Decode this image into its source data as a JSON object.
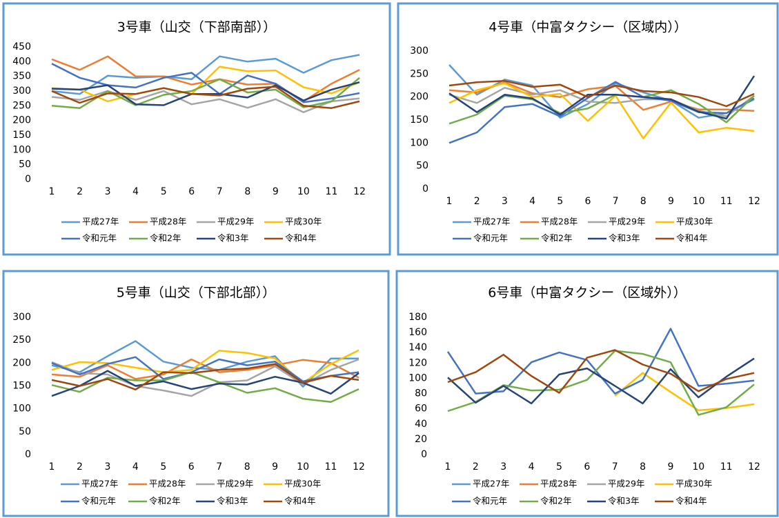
{
  "chart_data": [
    {
      "type": "line",
      "title": "3号車（山交（下部南部））",
      "categories": [
        "1",
        "2",
        "3",
        "4",
        "5",
        "6",
        "7",
        "8",
        "9",
        "10",
        "11",
        "12"
      ],
      "ylim": [
        0,
        450
      ],
      "yticks": [
        0,
        50,
        100,
        150,
        200,
        250,
        300,
        350,
        400,
        450
      ],
      "grid": false,
      "series": [
        {
          "name": "平成27年",
          "color": "#5b9bd5",
          "values": [
            300,
            290,
            352,
            345,
            350,
            340,
            418,
            400,
            410,
            362,
            405,
            423
          ]
        },
        {
          "name": "平成28年",
          "color": "#ed7d31",
          "values": [
            408,
            372,
            418,
            350,
            350,
            322,
            340,
            322,
            325,
            265,
            325,
            372
          ]
        },
        {
          "name": "平成29年",
          "color": "#a5a5a5",
          "values": [
            280,
            270,
            300,
            270,
            300,
            255,
            272,
            243,
            272,
            228,
            265,
            275
          ]
        },
        {
          "name": "平成30年",
          "color": "#ffc000",
          "values": [
            310,
            305,
            265,
            290,
            310,
            290,
            383,
            367,
            370,
            313,
            292,
            330
          ]
        },
        {
          "name": "令和元年",
          "color": "#4472c4",
          "values": [
            393,
            345,
            320,
            312,
            345,
            362,
            290,
            353,
            325,
            262,
            275,
            293
          ]
        },
        {
          "name": "令和2年",
          "color": "#70ad47",
          "values": [
            250,
            242,
            300,
            252,
            287,
            300,
            340,
            295,
            305,
            245,
            265,
            345
          ]
        },
        {
          "name": "令和3年",
          "color": "#264478",
          "values": [
            308,
            305,
            320,
            255,
            252,
            290,
            290,
            278,
            320,
            268,
            305,
            330
          ]
        },
        {
          "name": "令和4年",
          "color": "#9e480e",
          "values": [
            300,
            260,
            292,
            290,
            310,
            290,
            285,
            308,
            315,
            250,
            242,
            265
          ]
        }
      ]
    },
    {
      "type": "line",
      "title": "4号車（中富タクシー（区域内））",
      "categories": [
        "1",
        "2",
        "3",
        "4",
        "5",
        "6",
        "7",
        "8",
        "9",
        "10",
        "11",
        "12"
      ],
      "ylim": [
        0,
        300
      ],
      "yticks": [
        0,
        50,
        100,
        150,
        200,
        250,
        300
      ],
      "grid": false,
      "series": [
        {
          "name": "平成27年",
          "color": "#5b9bd5",
          "values": [
            270,
            205,
            238,
            225,
            155,
            185,
            230,
            210,
            192,
            155,
            165,
            195
          ]
        },
        {
          "name": "平成28年",
          "color": "#ed7d31",
          "values": [
            215,
            210,
            232,
            208,
            200,
            217,
            224,
            172,
            190,
            173,
            173,
            170
          ]
        },
        {
          "name": "平成29年",
          "color": "#a5a5a5",
          "values": [
            205,
            187,
            220,
            205,
            215,
            190,
            187,
            195,
            195,
            170,
            158,
            203
          ]
        },
        {
          "name": "平成30年",
          "color": "#ffc000",
          "values": [
            187,
            215,
            230,
            200,
            207,
            148,
            203,
            110,
            188,
            123,
            133,
            126
          ]
        },
        {
          "name": "令和元年",
          "color": "#4472c4",
          "values": [
            100,
            123,
            178,
            185,
            158,
            198,
            233,
            200,
            192,
            167,
            165,
            197
          ]
        },
        {
          "name": "令和2年",
          "color": "#70ad47",
          "values": [
            142,
            162,
            203,
            195,
            165,
            175,
            205,
            200,
            215,
            185,
            145,
            203
          ]
        },
        {
          "name": "令和3年",
          "color": "#264478",
          "values": [
            208,
            167,
            205,
            197,
            162,
            205,
            205,
            200,
            195,
            168,
            153,
            246
          ]
        },
        {
          "name": "令和4年",
          "color": "#9e480e",
          "values": [
            225,
            232,
            235,
            222,
            227,
            200,
            225,
            213,
            210,
            200,
            180,
            207
          ]
        }
      ]
    },
    {
      "type": "line",
      "title": "5号車（山交（下部北部））",
      "categories": [
        "1",
        "2",
        "3",
        "4",
        "5",
        "6",
        "7",
        "8",
        "9",
        "10",
        "11",
        "12"
      ],
      "ylim": [
        0,
        300
      ],
      "yticks": [
        0,
        50,
        100,
        150,
        200,
        250,
        300
      ],
      "grid": false,
      "series": [
        {
          "name": "平成27年",
          "color": "#5b9bd5",
          "values": [
            195,
            180,
            215,
            248,
            203,
            190,
            185,
            203,
            215,
            148,
            210,
            210
          ]
        },
        {
          "name": "平成28年",
          "color": "#ed7d31",
          "values": [
            175,
            170,
            195,
            165,
            175,
            208,
            180,
            185,
            195,
            207,
            200,
            168
          ]
        },
        {
          "name": "平成29年",
          "color": "#a5a5a5",
          "values": [
            202,
            178,
            175,
            150,
            140,
            128,
            158,
            162,
            193,
            153,
            185,
            208
          ]
        },
        {
          "name": "平成30年",
          "color": "#ffc000",
          "values": [
            185,
            202,
            200,
            190,
            180,
            185,
            227,
            222,
            210,
            157,
            198,
            228
          ]
        },
        {
          "name": "令和元年",
          "color": "#4472c4",
          "values": [
            200,
            175,
            198,
            213,
            165,
            180,
            208,
            195,
            203,
            160,
            172,
            180
          ]
        },
        {
          "name": "令和2年",
          "color": "#70ad47",
          "values": [
            152,
            137,
            168,
            162,
            162,
            180,
            158,
            135,
            145,
            122,
            115,
            143
          ]
        },
        {
          "name": "令和3年",
          "color": "#264478",
          "values": [
            128,
            150,
            183,
            150,
            160,
            143,
            155,
            153,
            170,
            157,
            133,
            178
          ]
        },
        {
          "name": "令和4年",
          "color": "#9e480e",
          "values": [
            163,
            150,
            165,
            142,
            180,
            178,
            185,
            188,
            198,
            157,
            172,
            163
          ]
        }
      ]
    },
    {
      "type": "line",
      "title": "6号車（中富タクシー（区域外））",
      "categories": [
        "1",
        "2",
        "3",
        "4",
        "5",
        "6",
        "7",
        "8",
        "9",
        "10",
        "11",
        "12"
      ],
      "ylim": [
        0,
        180
      ],
      "yticks": [
        0,
        20,
        40,
        60,
        80,
        100,
        120,
        140,
        160,
        180
      ],
      "grid": false,
      "series": [
        {
          "name": "平成27年",
          "color": "#5b9bd5",
          "values": [
            null,
            null,
            null,
            null,
            null,
            null,
            null,
            null,
            null,
            null,
            null,
            null
          ]
        },
        {
          "name": "平成28年",
          "color": "#ed7d31",
          "values": [
            null,
            null,
            null,
            null,
            null,
            null,
            null,
            null,
            null,
            null,
            null,
            null
          ]
        },
        {
          "name": "平成29年",
          "color": "#a5a5a5",
          "values": [
            null,
            null,
            null,
            null,
            null,
            null,
            null,
            null,
            null,
            null,
            null,
            null
          ]
        },
        {
          "name": "平成30年",
          "color": "#ffc000",
          "values": [
            null,
            null,
            null,
            null,
            null,
            null,
            77,
            107,
            82,
            58,
            61,
            66
          ]
        },
        {
          "name": "令和元年",
          "color": "#4472c4",
          "values": [
            135,
            80,
            83,
            121,
            134,
            124,
            80,
            98,
            165,
            90,
            93,
            97
          ]
        },
        {
          "name": "令和2年",
          "color": "#70ad47",
          "values": [
            57,
            69,
            91,
            84,
            85,
            98,
            136,
            132,
            121,
            52,
            62,
            92
          ]
        },
        {
          "name": "令和3年",
          "color": "#264478",
          "values": [
            101,
            68,
            90,
            67,
            105,
            113,
            90,
            67,
            112,
            75,
            102,
            126
          ]
        },
        {
          "name": "令和4年",
          "color": "#9e480e",
          "values": [
            95,
            108,
            131,
            103,
            81,
            127,
            137,
            118,
            106,
            83,
            99,
            107
          ]
        }
      ]
    }
  ]
}
